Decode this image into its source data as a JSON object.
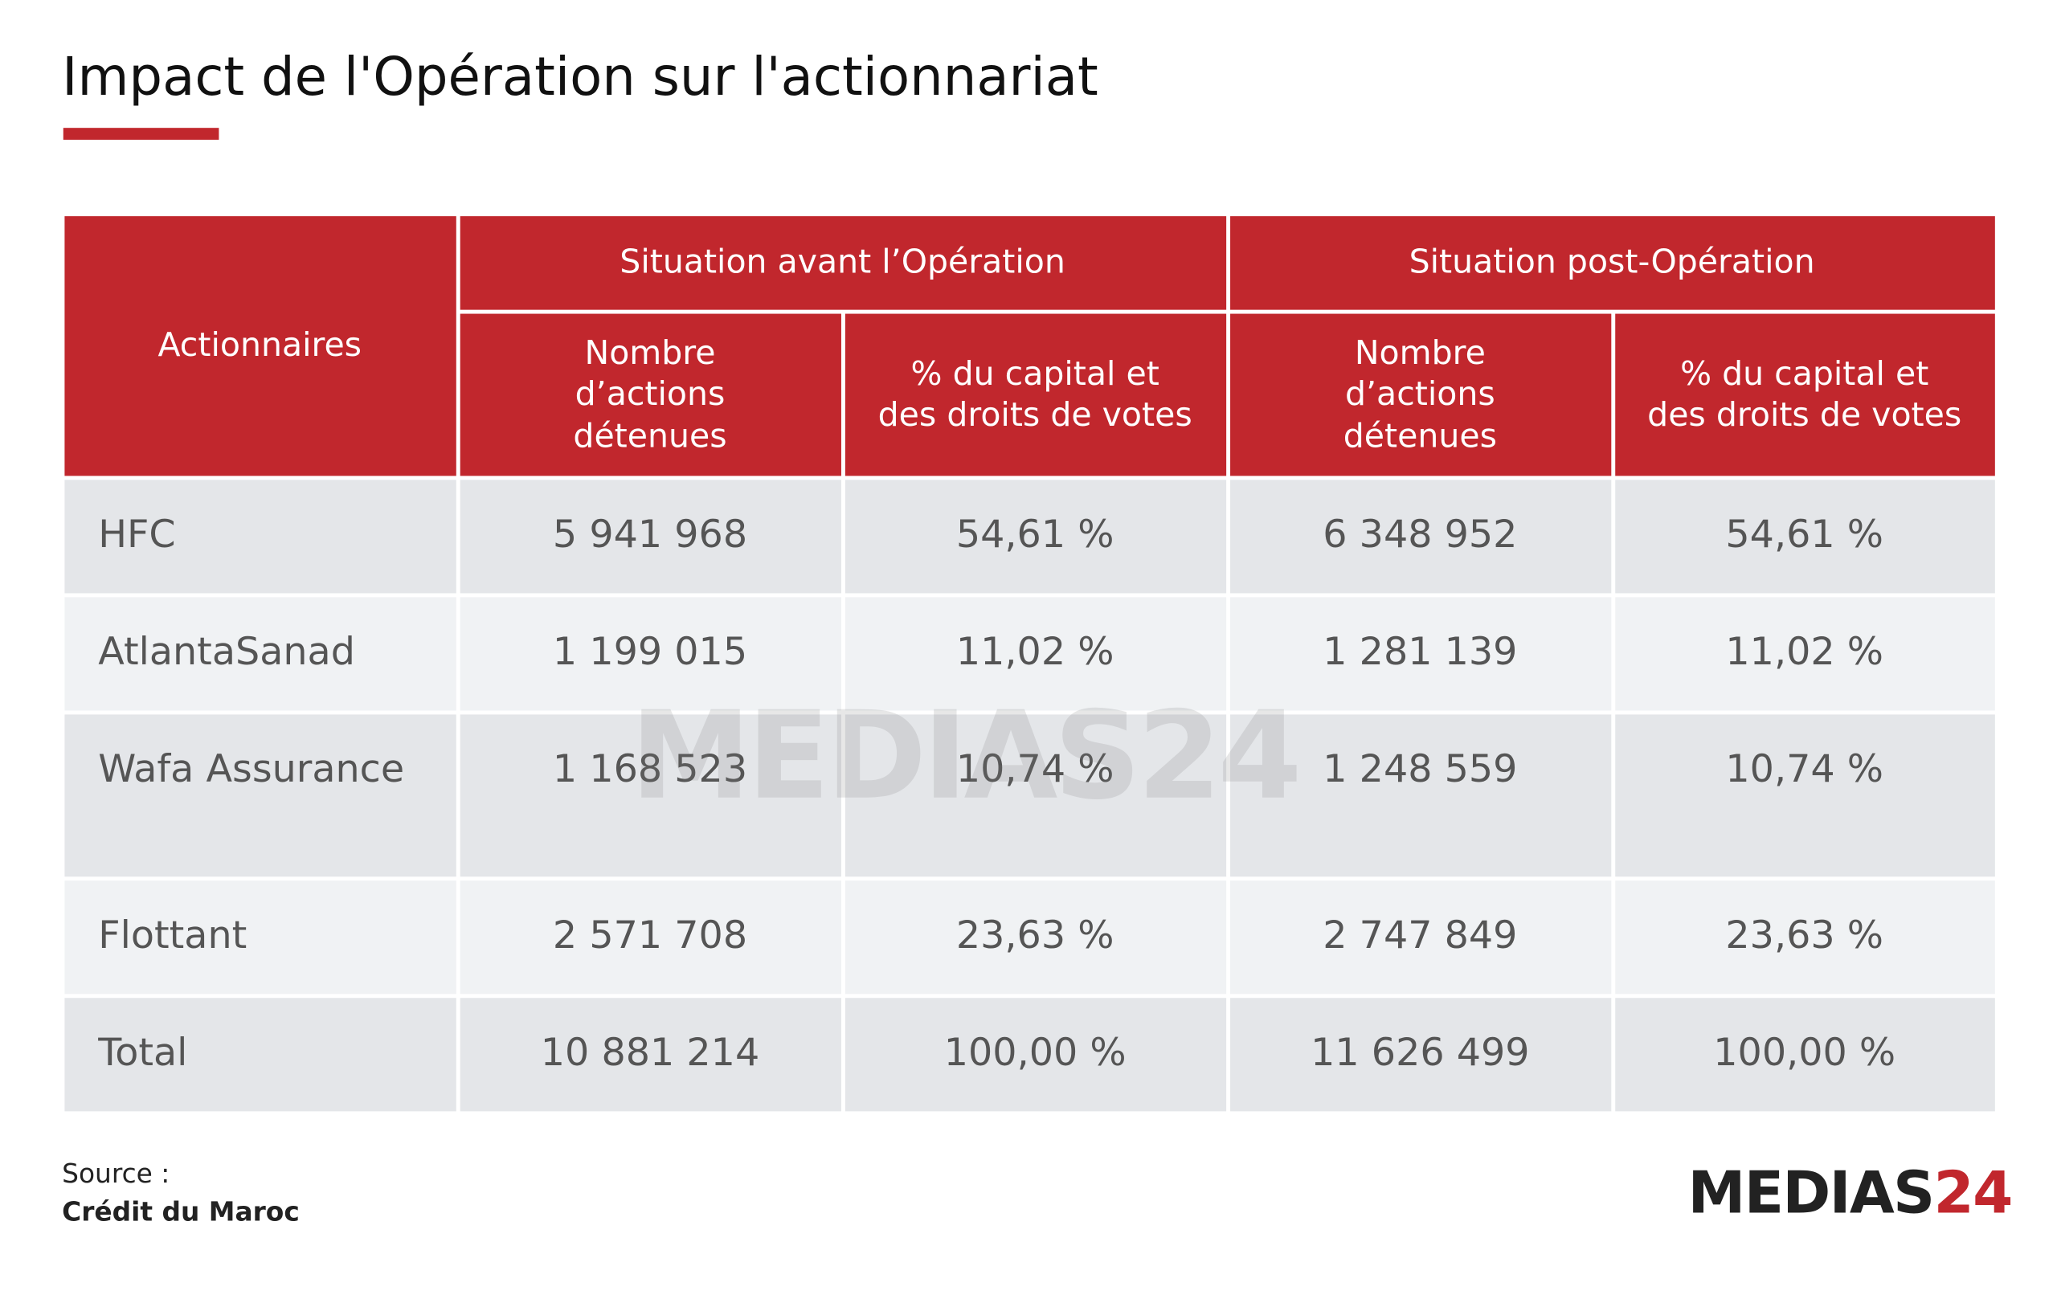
{
  "header": {
    "title": "Impact de l'Opération sur l'actionnariat"
  },
  "table": {
    "corner": "Actionnaires",
    "group_headers": [
      "Situation avant l’Opération",
      "Situation post-Opération"
    ],
    "column_headers": [
      "Nombre d’actions détenues",
      "% du capital et des droits de votes",
      "Nombre d’actions détenues",
      "% du capital et des droits de votes"
    ],
    "rows": [
      [
        "HFC",
        "5 941 968",
        "54,61 %",
        "6 348 952",
        "54,61 %"
      ],
      [
        "AtlantaSanad",
        "1 199 015",
        "11,02 %",
        "1 281 139",
        "11,02 %"
      ],
      [
        "Wafa Assurance",
        "1 168 523",
        "10,74 %",
        "1 248 559",
        "10,74 %"
      ],
      [
        "Flottant",
        "2 571 708",
        "23,63 %",
        "2 747 849",
        "23,63 %"
      ],
      [
        "Total",
        "10 881 214",
        "100,00 %",
        "11 626 499",
        "100,00 %"
      ]
    ]
  },
  "source": {
    "label": "Source :",
    "text": "Crédit du Maroc"
  },
  "logo": {
    "name": "MEDIAS",
    "number": "24"
  }
}
